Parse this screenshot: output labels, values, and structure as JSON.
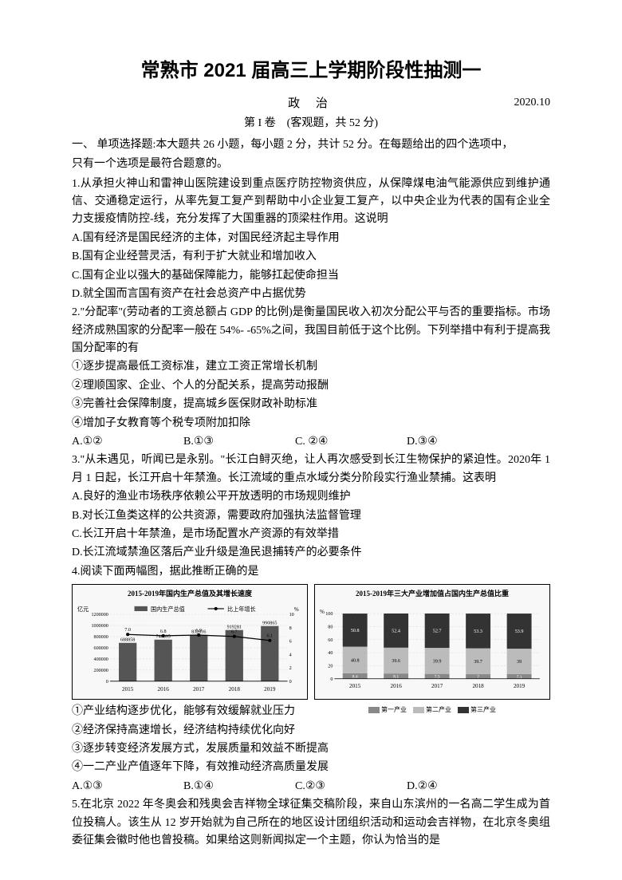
{
  "title": "常熟市 2021 届高三上学期阶段性抽测一",
  "subject": "政 治",
  "date": "2020.10",
  "section_header": "第 I 卷　(客观题，共 52 分)",
  "instruction_line1": "一、 单项选择题:本大题共 26 小题，每小题 2 分，共计 52 分。在每题给出的四个选项中，",
  "instruction_line2": "只有一个选项是最符合题意的。",
  "q1": {
    "text": "1.从承担火神山和雷神山医院建设到重点医疗防控物资供应，从保障煤电油气能源供应到维护通信、交通稳定运行，从率先复工复产到帮助中小企业复工复产，以中央企业为代表的国有企业全力支援疫情防控-线，充分发挥了大国重器的顶梁柱作用。这说明",
    "A": "A.国有经济是国民经济的主体，对国民经济起主导作用",
    "B": "B.国有企业经营灵活，有利于扩大就业和增加收入",
    "C": "C.国有企业以强大的基础保障能力，能够扛起使命担当",
    "D": "D.就全国而言国有资产在社会总资产中占据优势"
  },
  "q2": {
    "text": "2.\"分配率\"(劳动者的工资总额占 GDP 的比例)是衡量国民收入初次分配公平与否的重要指标。市场经济成熟国家的分配率一般在 54%- -65%之间，我国目前低于这个比例。下列举措中有利于提高我国分配率的有",
    "o1": "①逐步提高最低工资标准，建立工资正常增长机制",
    "o2": "②理顺国家、企业、个人的分配关系，提高劳动报酬",
    "o3": "③完善社会保障制度，提高城乡医保财政补助标准",
    "o4": "④增加子女教育等个税专项附加扣除",
    "A": "A.①②",
    "B": "B.①③",
    "C": "C. ②④",
    "D": "D.③④"
  },
  "q3": {
    "text": "3.\"从未遇见，听闻已是永别。\"长江白鲟灭绝，让人再次感受到长江生物保护的紧迫性。2020年 1 月 1 日起，长江开启十年禁渔。长江流域的重点水域分类分阶段实行渔业禁捕。这表明",
    "A": "A.良好的渔业市场秩序依赖公平开放透明的市场规则维护",
    "B": "B.对长江鱼类这样的公共资源，需要政府加强执法监督管理",
    "C": "C.长江开启十年禁渔，是市场配置水产资源的有效举措",
    "D": "D.长江流域禁渔区落后产业升级是渔民退捕转产的必要条件"
  },
  "q4": {
    "intro": "4.阅读下面两幅图，据此推断正确的是",
    "chart1": {
      "title": "2015-2019年国内生产总值及其增长速度",
      "legend_bar": "国内生产总值",
      "legend_line": "比上年增长",
      "y_unit": "亿元",
      "y_unit_right": "%",
      "y_max": 1200000,
      "y_ticks": [
        0,
        200000,
        400000,
        600000,
        800000,
        1000000,
        1200000
      ],
      "years": [
        "2015",
        "2016",
        "2017",
        "2018",
        "2019"
      ],
      "gdp_values": [
        688858,
        746395,
        832036,
        919281,
        990865
      ],
      "growth_values": [
        7.0,
        6.8,
        6.9,
        6.7,
        6.1
      ],
      "bar_color": "#555555",
      "line_color": "#000000",
      "bg": "#f0f0f0"
    },
    "chart2": {
      "title": "2015-2019年三大产业增加值占国内生产总值比重",
      "y_unit": "%",
      "y_max": 100,
      "years": [
        "2015",
        "2016",
        "2017",
        "2018",
        "2019"
      ],
      "primary": [
        8.4,
        8.1,
        7.5,
        7.0,
        7.1
      ],
      "secondary": [
        40.8,
        39.6,
        39.9,
        39.7,
        39.0
      ],
      "tertiary": [
        50.8,
        52.4,
        52.7,
        53.3,
        53.9
      ],
      "color_primary": "#888888",
      "color_secondary": "#bbbbbb",
      "color_tertiary": "#333333",
      "legend1": "第一产业",
      "legend2": "第二产业",
      "legend3": "第三产业"
    },
    "o1": "①产业结构逐步优化，能够有效缓解就业压力",
    "o2": "②经济保持高速增长，经济结构持续优化向好",
    "o3": "③逐步转变经济发展方式，发展质量和效益不断提高",
    "o4": "④一二产业产值逐年下降，有效推动经济高质量发展",
    "A": "A.①③",
    "B": "B.①④",
    "C": "C.②③",
    "D": "D.②④"
  },
  "q5": {
    "text": "5.在北京 2022 年冬奥会和残奥会吉祥物全球征集交稿阶段，来自山东滨州的一名高二学生成为首位投稿人。该生从 12 岁开始就为自己所在的地区设计团组织活动和运动会吉祥物，在北京冬奥组委征集会徽时他也曾投稿。如果给这则新闻拟定一个主题，你认为恰当的是"
  }
}
